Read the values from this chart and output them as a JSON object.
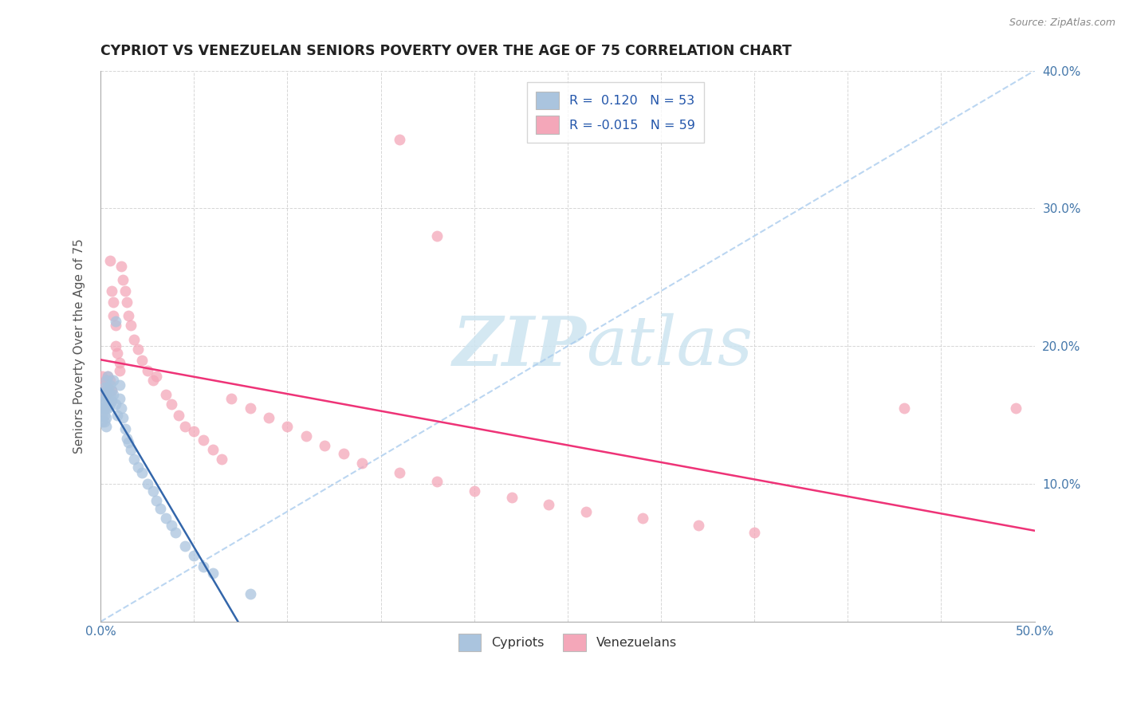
{
  "title": "CYPRIOT VS VENEZUELAN SENIORS POVERTY OVER THE AGE OF 75 CORRELATION CHART",
  "source": "Source: ZipAtlas.com",
  "ylabel": "Seniors Poverty Over the Age of 75",
  "xlim": [
    0,
    0.5
  ],
  "ylim": [
    0,
    0.4
  ],
  "legend_r_cypriot": "0.120",
  "legend_n_cypriot": "53",
  "legend_r_venezuelan": "-0.015",
  "legend_n_venezuelan": "59",
  "cypriot_color": "#aac4de",
  "venezuelan_color": "#f4a7b9",
  "cypriot_dot_edge": "#7aaacf",
  "venezuelan_dot_edge": "#e8809a",
  "cypriot_line_color": "#3366aa",
  "venezuelan_line_color": "#ee3377",
  "dashed_line_color": "#aaccee",
  "watermark_color": "#cde4f0",
  "cypriot_x": [
    0.001,
    0.001,
    0.001,
    0.001,
    0.002,
    0.002,
    0.002,
    0.002,
    0.002,
    0.002,
    0.003,
    0.003,
    0.003,
    0.003,
    0.003,
    0.003,
    0.004,
    0.004,
    0.004,
    0.004,
    0.005,
    0.005,
    0.005,
    0.006,
    0.006,
    0.007,
    0.007,
    0.008,
    0.008,
    0.009,
    0.01,
    0.01,
    0.011,
    0.012,
    0.013,
    0.014,
    0.015,
    0.016,
    0.018,
    0.02,
    0.022,
    0.025,
    0.028,
    0.03,
    0.032,
    0.035,
    0.038,
    0.04,
    0.045,
    0.05,
    0.055,
    0.06,
    0.08
  ],
  "cypriot_y": [
    0.16,
    0.155,
    0.15,
    0.145,
    0.17,
    0.165,
    0.16,
    0.155,
    0.15,
    0.145,
    0.175,
    0.168,
    0.162,
    0.155,
    0.148,
    0.142,
    0.178,
    0.17,
    0.162,
    0.155,
    0.172,
    0.165,
    0.158,
    0.168,
    0.16,
    0.175,
    0.165,
    0.218,
    0.158,
    0.15,
    0.172,
    0.162,
    0.155,
    0.148,
    0.14,
    0.133,
    0.13,
    0.125,
    0.118,
    0.112,
    0.108,
    0.1,
    0.095,
    0.088,
    0.082,
    0.075,
    0.07,
    0.065,
    0.055,
    0.048,
    0.04,
    0.035,
    0.02
  ],
  "venezuelan_x": [
    0.001,
    0.002,
    0.002,
    0.003,
    0.003,
    0.004,
    0.004,
    0.005,
    0.005,
    0.006,
    0.006,
    0.007,
    0.007,
    0.008,
    0.008,
    0.009,
    0.01,
    0.01,
    0.011,
    0.012,
    0.013,
    0.014,
    0.015,
    0.016,
    0.018,
    0.02,
    0.022,
    0.025,
    0.028,
    0.03,
    0.035,
    0.038,
    0.042,
    0.045,
    0.05,
    0.055,
    0.06,
    0.065,
    0.07,
    0.08,
    0.09,
    0.1,
    0.11,
    0.12,
    0.13,
    0.14,
    0.16,
    0.18,
    0.2,
    0.22,
    0.24,
    0.26,
    0.29,
    0.32,
    0.35,
    0.16,
    0.18,
    0.43,
    0.49
  ],
  "venezuelan_y": [
    0.178,
    0.172,
    0.168,
    0.175,
    0.165,
    0.178,
    0.168,
    0.262,
    0.175,
    0.168,
    0.24,
    0.232,
    0.222,
    0.215,
    0.2,
    0.195,
    0.188,
    0.182,
    0.258,
    0.248,
    0.24,
    0.232,
    0.222,
    0.215,
    0.205,
    0.198,
    0.19,
    0.182,
    0.175,
    0.178,
    0.165,
    0.158,
    0.15,
    0.142,
    0.138,
    0.132,
    0.125,
    0.118,
    0.162,
    0.155,
    0.148,
    0.142,
    0.135,
    0.128,
    0.122,
    0.115,
    0.108,
    0.102,
    0.095,
    0.09,
    0.085,
    0.08,
    0.075,
    0.07,
    0.065,
    0.35,
    0.28,
    0.155,
    0.155
  ]
}
